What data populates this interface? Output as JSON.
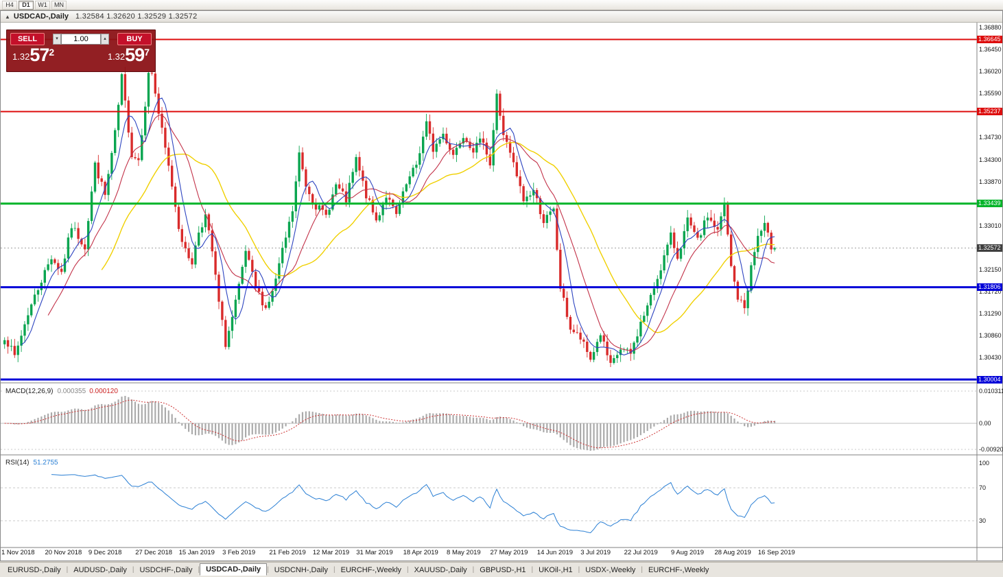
{
  "toolbar": {
    "timeframes": [
      {
        "label": "H4",
        "active": false
      },
      {
        "label": "D1",
        "active": true
      },
      {
        "label": "W1",
        "active": false
      },
      {
        "label": "MN",
        "active": false
      }
    ]
  },
  "icons": {
    "collapse": "▲",
    "volume_down": "▾",
    "volume_up": "▴",
    "tab_separator": "|"
  },
  "chart_window": {
    "symbol": "USDCAD-,Daily",
    "ohlc": "1.32584 1.32620 1.32529 1.32572"
  },
  "trade_panel": {
    "sell_label": "SELL",
    "buy_label": "BUY",
    "volume": "1.00",
    "sell_price": {
      "prefix": "1.32",
      "big": "57",
      "sup": "2"
    },
    "buy_price": {
      "prefix": "1.32",
      "big": "59",
      "sup": "7"
    }
  },
  "price_axis": {
    "labels": [
      "1.36880",
      "1.36450",
      "1.36020",
      "1.35590",
      "1.34730",
      "1.34300",
      "1.33870",
      "1.33010",
      "1.32150",
      "1.31720",
      "1.31290",
      "1.30860",
      "1.30430"
    ]
  },
  "hlines": [
    {
      "price": 1.36645,
      "label": "1.36645",
      "color": "#dd0d0d",
      "width": 2
    },
    {
      "price": 1.35237,
      "label": "1.35237",
      "color": "#dd0d0d",
      "width": 2
    },
    {
      "price": 1.33439,
      "label": "1.33439",
      "color": "#00b428",
      "width": 3
    },
    {
      "price": 1.31806,
      "label": "1.31806",
      "color": "#0000d8",
      "width": 3
    },
    {
      "price": 1.30004,
      "label": "1.30004",
      "color": "#0000d8",
      "width": 3
    }
  ],
  "current_price": {
    "value": 1.32572,
    "label": "1.32572",
    "badge_color": "#3f3f3f"
  },
  "macd": {
    "label": "MACD(12,26,9)",
    "value_main": "0.000355",
    "value_signal": "0.000120",
    "axis_labels": [
      {
        "text": "0.010311",
        "value": 0.010311
      },
      {
        "text": "0.00",
        "value": 0
      },
      {
        "text": "-0.009203",
        "value": -0.009203
      }
    ]
  },
  "rsi": {
    "label": "RSI(14)",
    "value": "51.2755",
    "axis_labels": [
      {
        "text": "100",
        "value": 100
      },
      {
        "text": "70",
        "value": 70
      },
      {
        "text": "30",
        "value": 30
      }
    ],
    "levels": [
      70,
      30
    ]
  },
  "date_axis": [
    {
      "label": "1 Nov 2018",
      "idx": 0
    },
    {
      "label": "20 Nov 2018",
      "idx": 13
    },
    {
      "label": "9 Dec 2018",
      "idx": 26
    },
    {
      "label": "27 Dec 2018",
      "idx": 40
    },
    {
      "label": "15 Jan 2019",
      "idx": 53
    },
    {
      "label": "3 Feb 2019",
      "idx": 66
    },
    {
      "label": "21 Feb 2019",
      "idx": 80
    },
    {
      "label": "12 Mar 2019",
      "idx": 93
    },
    {
      "label": "31 Mar 2019",
      "idx": 106
    },
    {
      "label": "18 Apr 2019",
      "idx": 120
    },
    {
      "label": "8 May 2019",
      "idx": 133
    },
    {
      "label": "27 May 2019",
      "idx": 146
    },
    {
      "label": "14 Jun 2019",
      "idx": 160
    },
    {
      "label": "3 Jul 2019",
      "idx": 173
    },
    {
      "label": "22 Jul 2019",
      "idx": 186
    },
    {
      "label": "9 Aug 2019",
      "idx": 200
    },
    {
      "label": "28 Aug 2019",
      "idx": 213
    },
    {
      "label": "16 Sep 2019",
      "idx": 226
    }
  ],
  "tabs": [
    {
      "label": "EURUSD-,Daily",
      "active": false
    },
    {
      "label": "AUDUSD-,Daily",
      "active": false
    },
    {
      "label": "USDCHF-,Daily",
      "active": false
    },
    {
      "label": "USDCAD-,Daily",
      "active": true
    },
    {
      "label": "USDCNH-,Daily",
      "active": false
    },
    {
      "label": "EURCHF-,Weekly",
      "active": false
    },
    {
      "label": "XAUUSD-,Daily",
      "active": false
    },
    {
      "label": "GBPUSD-,H1",
      "active": false
    },
    {
      "label": "UKOil-,H1",
      "active": false
    },
    {
      "label": "USDX-,Weekly",
      "active": false
    },
    {
      "label": "EURCHF-,Weekly",
      "active": false
    }
  ],
  "chart_data": {
    "type": "candlestick",
    "symbol": "USDCAD",
    "timeframe": "Daily",
    "visible_price_range": {
      "high": 1.3688,
      "low": 1.3
    },
    "num_candles": 231,
    "anchors": [
      [
        0,
        1.3085
      ],
      [
        3,
        1.3045
      ],
      [
        7,
        1.313
      ],
      [
        11,
        1.3195
      ],
      [
        14,
        1.324
      ],
      [
        17,
        1.321
      ],
      [
        20,
        1.33
      ],
      [
        24,
        1.326
      ],
      [
        27,
        1.342
      ],
      [
        30,
        1.336
      ],
      [
        33,
        1.348
      ],
      [
        35,
        1.359
      ],
      [
        38,
        1.344
      ],
      [
        40,
        1.343
      ],
      [
        43,
        1.3595
      ],
      [
        44,
        1.36
      ],
      [
        46,
        1.352
      ],
      [
        48,
        1.345
      ],
      [
        50,
        1.338
      ],
      [
        52,
        1.33
      ],
      [
        54,
        1.325
      ],
      [
        56,
        1.323
      ],
      [
        58,
        1.329
      ],
      [
        60,
        1.332
      ],
      [
        62,
        1.325
      ],
      [
        64,
        1.315
      ],
      [
        66,
        1.307
      ],
      [
        68,
        1.312
      ],
      [
        70,
        1.318
      ],
      [
        72,
        1.325
      ],
      [
        75,
        1.318
      ],
      [
        78,
        1.314
      ],
      [
        80,
        1.317
      ],
      [
        83,
        1.325
      ],
      [
        86,
        1.333
      ],
      [
        88,
        1.344
      ],
      [
        90,
        1.338
      ],
      [
        93,
        1.334
      ],
      [
        96,
        1.332
      ],
      [
        99,
        1.338
      ],
      [
        102,
        1.335
      ],
      [
        105,
        1.343
      ],
      [
        108,
        1.336
      ],
      [
        111,
        1.331
      ],
      [
        114,
        1.336
      ],
      [
        117,
        1.332
      ],
      [
        120,
        1.338
      ],
      [
        123,
        1.342
      ],
      [
        126,
        1.35
      ],
      [
        128,
        1.345
      ],
      [
        131,
        1.348
      ],
      [
        134,
        1.344
      ],
      [
        137,
        1.348
      ],
      [
        140,
        1.345
      ],
      [
        143,
        1.347
      ],
      [
        145,
        1.342
      ],
      [
        147,
        1.3555
      ],
      [
        149,
        1.348
      ],
      [
        152,
        1.342
      ],
      [
        155,
        1.335
      ],
      [
        158,
        1.337
      ],
      [
        161,
        1.331
      ],
      [
        164,
        1.333
      ],
      [
        166,
        1.318
      ],
      [
        169,
        1.31
      ],
      [
        172,
        1.308
      ],
      [
        175,
        1.304
      ],
      [
        178,
        1.309
      ],
      [
        181,
        1.3025
      ],
      [
        184,
        1.306
      ],
      [
        187,
        1.305
      ],
      [
        190,
        1.311
      ],
      [
        193,
        1.316
      ],
      [
        196,
        1.322
      ],
      [
        199,
        1.328
      ],
      [
        201,
        1.324
      ],
      [
        204,
        1.331
      ],
      [
        207,
        1.327
      ],
      [
        210,
        1.332
      ],
      [
        213,
        1.329
      ],
      [
        215,
        1.334
      ],
      [
        217,
        1.322
      ],
      [
        219,
        1.316
      ],
      [
        221,
        1.314
      ],
      [
        223,
        1.322
      ],
      [
        225,
        1.328
      ],
      [
        227,
        1.33
      ],
      [
        229,
        1.326
      ],
      [
        230,
        1.32572
      ]
    ],
    "ma_periods": {
      "fast": 6,
      "mid": 14,
      "slow": 30
    },
    "colors": {
      "up": "#0aa550",
      "down": "#d92b2b",
      "ma_fast": "#2d44c0",
      "ma_mid": "#c23148",
      "ma_slow": "#f0d000",
      "macd_hist": "#ababab",
      "macd_signal": "#cc3333",
      "rsi_line": "#2a7fd4"
    }
  }
}
